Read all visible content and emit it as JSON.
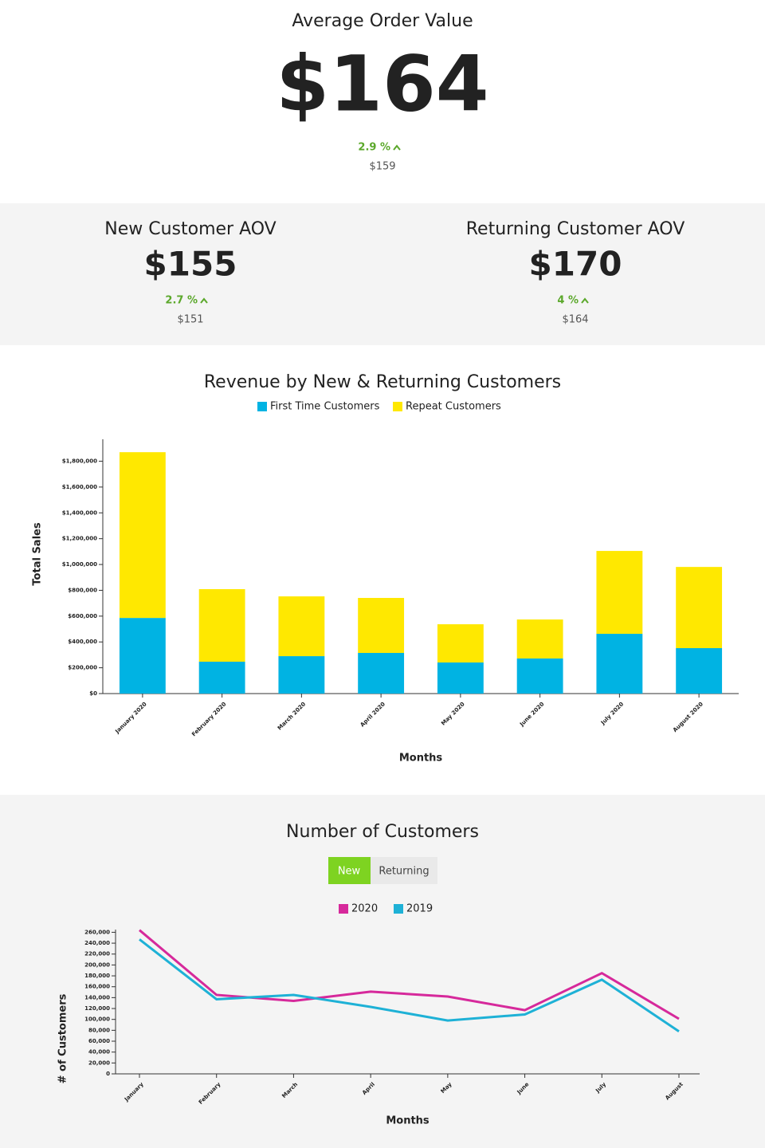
{
  "aov": {
    "label": "Average Order Value",
    "value": "$164",
    "change": "2.9 %",
    "previous": "$159"
  },
  "new_aov": {
    "label": "New Customer AOV",
    "value": "$155",
    "change": "2.7 %",
    "previous": "$151"
  },
  "returning_aov": {
    "label": "Returning Customer AOV",
    "value": "$170",
    "change": "4 %",
    "previous": "$164"
  },
  "chart_data": [
    {
      "type": "bar",
      "stacked": true,
      "title": "Revenue by New & Returning Customers",
      "categories": [
        "January 2020",
        "February 2020",
        "March 2020",
        "April 2020",
        "May 2020",
        "June 2020",
        "July 2020",
        "August 2020"
      ],
      "series": [
        {
          "name": "First Time Customers",
          "color": "#00b3e3",
          "values": [
            586000,
            247000,
            290000,
            315000,
            241000,
            272000,
            463000,
            352000
          ]
        },
        {
          "name": "Repeat Customers",
          "color": "#ffe800",
          "values": [
            1284000,
            562000,
            463000,
            426000,
            296000,
            302000,
            642000,
            629000
          ]
        }
      ],
      "ylim": [
        0,
        1970000
      ],
      "yticks": [
        {
          "value": 0,
          "label": "$0"
        },
        {
          "value": 200000,
          "label": "$200,000"
        },
        {
          "value": 400000,
          "label": "$400,000"
        },
        {
          "value": 600000,
          "label": "$600,000"
        },
        {
          "value": 800000,
          "label": "$800,000"
        },
        {
          "value": 1000000,
          "label": "$1,000,000"
        },
        {
          "value": 1200000,
          "label": "$1,200,000"
        },
        {
          "value": 1400000,
          "label": "$1,400,000"
        },
        {
          "value": 1600000,
          "label": "$1,600,000"
        },
        {
          "value": 1800000,
          "label": "$1,800,000"
        }
      ],
      "y_label": "Total Sales",
      "x_label": "Months",
      "grid": false
    },
    {
      "type": "line",
      "title": "Number of Customers",
      "toggle": [
        "New",
        "Returning"
      ],
      "categories": [
        "January",
        "February",
        "March",
        "April",
        "May",
        "June",
        "July",
        "August"
      ],
      "series": [
        {
          "name": "2020",
          "color": "#d6299b",
          "values": [
            264000,
            145000,
            134000,
            151000,
            142000,
            117000,
            185000,
            101000
          ]
        },
        {
          "name": "2019",
          "color": "#1eb1d6",
          "values": [
            247000,
            137000,
            145000,
            123000,
            98000,
            109000,
            173000,
            78000
          ]
        }
      ],
      "ylim": [
        0,
        265000
      ],
      "yticks": [
        0,
        {
          "value": 20000,
          "label": "20,000"
        },
        {
          "value": 40000,
          "label": "40,000"
        },
        {
          "value": 60000,
          "label": "60,000"
        },
        {
          "value": 80000,
          "label": "80,000"
        },
        {
          "value": 100000,
          "label": "100,000"
        },
        {
          "value": 120000,
          "label": "120,000"
        },
        {
          "value": 140000,
          "label": "140,000"
        },
        {
          "value": 160000,
          "label": "160,000"
        },
        {
          "value": 180000,
          "label": "180,000"
        },
        {
          "value": 200000,
          "label": "200,000"
        },
        {
          "value": 220000,
          "label": "220,000"
        },
        {
          "value": 240000,
          "label": "240,000"
        },
        {
          "value": 260000,
          "label": "260,000"
        }
      ],
      "y_label": "# of Customers",
      "x_label": "Months",
      "grid": false
    }
  ]
}
